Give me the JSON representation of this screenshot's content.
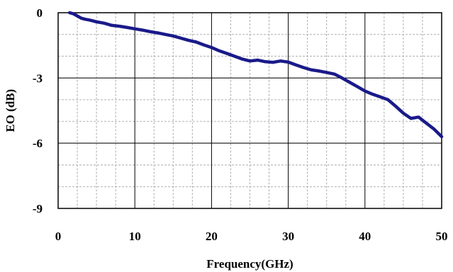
{
  "chart_data": {
    "type": "line",
    "xlabel": "Frequency(GHz)",
    "ylabel": "EO (dB)",
    "xlim": [
      0,
      50
    ],
    "ylim": [
      -9,
      0
    ],
    "x_ticks": [
      0,
      10,
      20,
      30,
      40,
      50
    ],
    "x_tick_labels": [
      "0",
      "10",
      "20",
      "30",
      "40",
      "50"
    ],
    "y_ticks": [
      0,
      -3,
      -6,
      -9
    ],
    "y_tick_labels": [
      "0",
      "-3",
      "-6",
      "-9"
    ],
    "x_minor_step": 2.5,
    "y_minor_step": 1,
    "grid": true,
    "legend": "none",
    "colors": {
      "series": "#1a1a8a",
      "major_grid": "#000000",
      "minor_grid": "#b0b0b0"
    },
    "series": [
      {
        "x": [
          1.5,
          2,
          2.5,
          3,
          3.5,
          4,
          4.5,
          5,
          6,
          7,
          8,
          9,
          10,
          11,
          12,
          13,
          14,
          15,
          16,
          17,
          18,
          19,
          20,
          21,
          22,
          23,
          24,
          25,
          26,
          27,
          28,
          29,
          30,
          31,
          32,
          33,
          34,
          35,
          36,
          37,
          38,
          39,
          40,
          41,
          42,
          43,
          44,
          45,
          46,
          47,
          48,
          49,
          50
        ],
        "y": [
          0.0,
          -0.05,
          -0.15,
          -0.25,
          -0.3,
          -0.33,
          -0.37,
          -0.42,
          -0.48,
          -0.58,
          -0.62,
          -0.68,
          -0.74,
          -0.8,
          -0.87,
          -0.93,
          -1.0,
          -1.07,
          -1.17,
          -1.27,
          -1.35,
          -1.48,
          -1.6,
          -1.75,
          -1.87,
          -2.0,
          -2.13,
          -2.22,
          -2.18,
          -2.25,
          -2.28,
          -2.22,
          -2.27,
          -2.4,
          -2.52,
          -2.63,
          -2.68,
          -2.75,
          -2.82,
          -3.0,
          -3.2,
          -3.4,
          -3.6,
          -3.75,
          -3.87,
          -4.0,
          -4.3,
          -4.62,
          -4.86,
          -4.8,
          -5.08,
          -5.35,
          -5.7
        ]
      }
    ]
  }
}
